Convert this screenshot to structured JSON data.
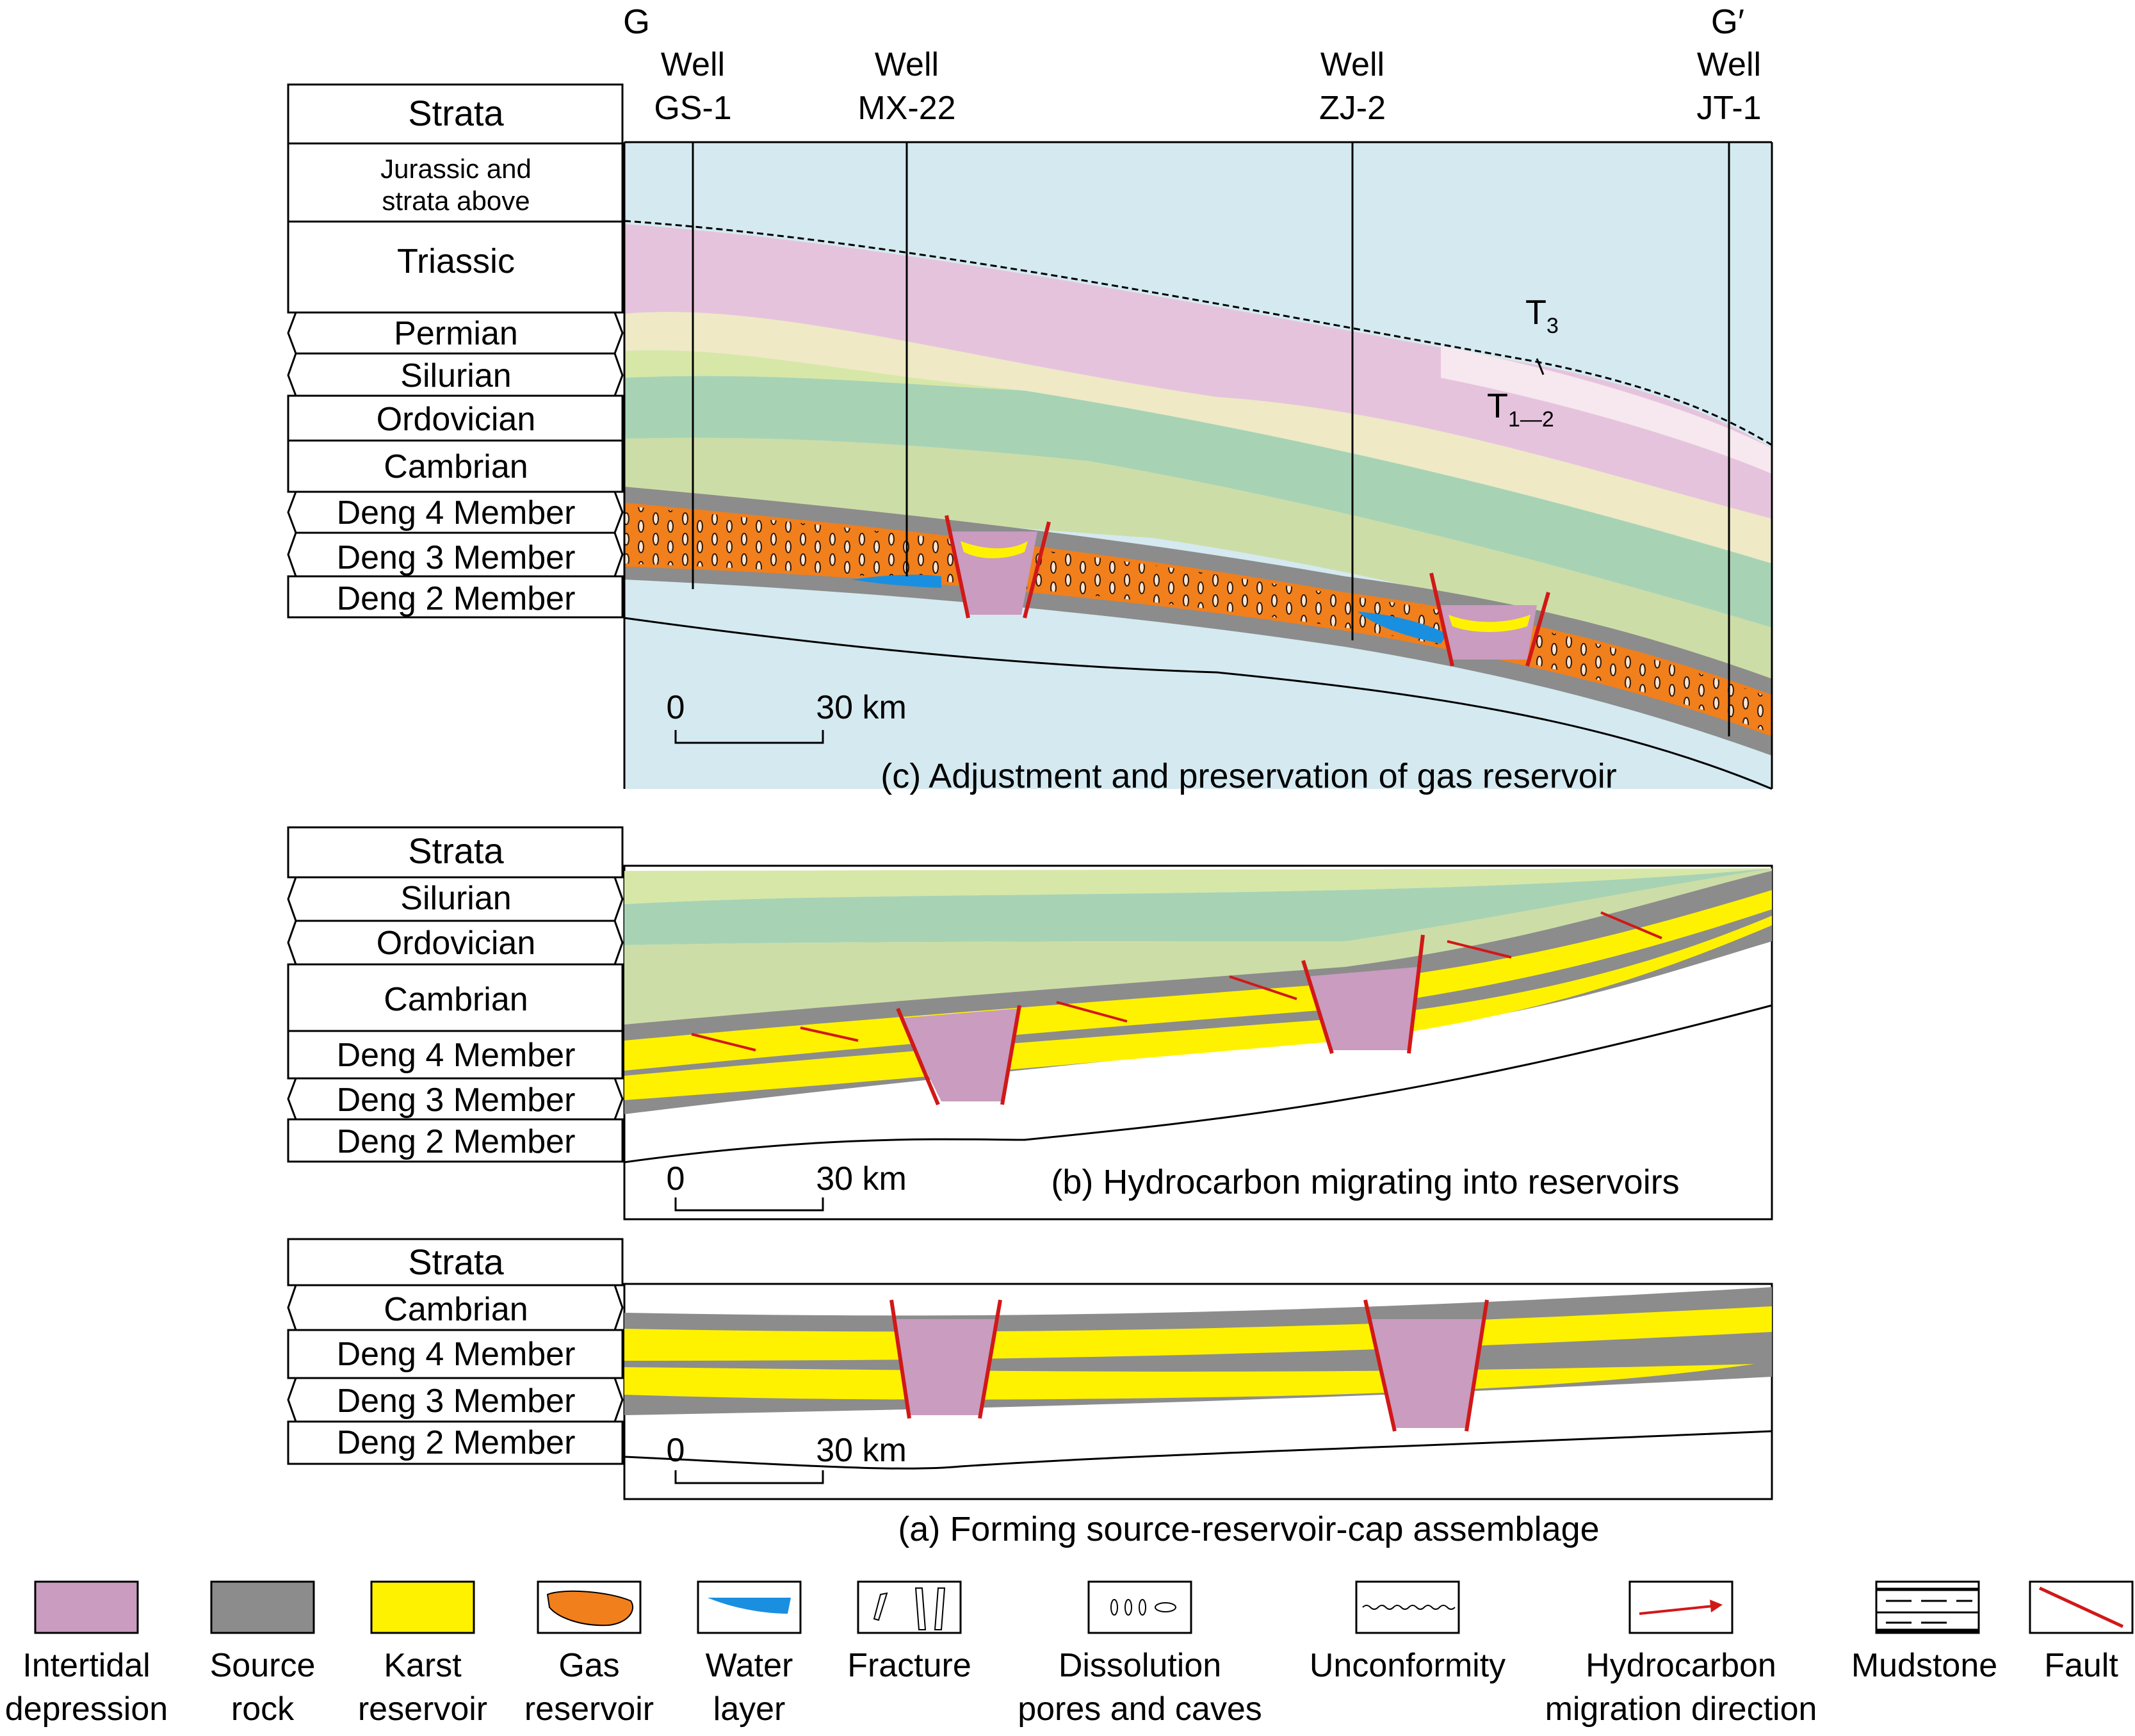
{
  "colors": {
    "jurassic": "#d4e9f0",
    "triassic": "#e6c3dd",
    "t3": "#f6e8ee",
    "permian": "#efe9c6",
    "silurian": "#d7e7a7",
    "ordovician": "#a7d3b4",
    "cambrian": "#cddda7",
    "source_rock": "#8c8c8c",
    "karst": "#fff200",
    "gas": "#f07f1c",
    "water": "#1a8fe0",
    "depression": "#c99cc0",
    "fault": "#d11818",
    "arrow": "#d11818"
  },
  "panel_c": {
    "strata_header": "Strata",
    "layers": [
      "Jurassic and",
      "strata above",
      "Triassic",
      "Permian",
      "Silurian",
      "Ordovician",
      "Cambrian",
      "Deng 4 Member",
      "Deng 3 Member",
      "Deng 2 Member"
    ],
    "section_start": "G",
    "section_end": "G′",
    "wells": [
      {
        "line1": "Well",
        "line2": "GS-1"
      },
      {
        "line1": "Well",
        "line2": "MX-22"
      },
      {
        "line1": "Well",
        "line2": "ZJ-2"
      },
      {
        "line1": "Well",
        "line2": "JT-1"
      }
    ],
    "label_t3": "T",
    "label_t3_sub": "3",
    "label_t12": "T",
    "label_t12_sub": "1—2",
    "scale_zero": "0",
    "scale_end": "30 km",
    "caption": "(c) Adjustment and preservation of gas reservoir"
  },
  "panel_b": {
    "layers": [
      "Strata",
      "Silurian",
      "Ordovician",
      "Cambrian",
      "Deng 4 Member",
      "Deng 3 Member",
      "Deng 2 Member"
    ],
    "scale_zero": "0",
    "scale_end": "30 km",
    "caption": "(b) Hydrocarbon migrating into reservoirs"
  },
  "panel_a": {
    "layers": [
      "Strata",
      "Cambrian",
      "Deng 4 Member",
      "Deng 3 Member",
      "Deng 2 Member"
    ],
    "scale_zero": "0",
    "scale_end": "30 km",
    "caption": "(a) Forming source-reservoir-cap assemblage"
  },
  "legend": [
    {
      "icon": "intertidal-depression-swatch",
      "line1": "Intertidal",
      "line2": "depression"
    },
    {
      "icon": "source-rock-swatch",
      "line1": "Source",
      "line2": "rock"
    },
    {
      "icon": "karst-reservoir-swatch",
      "line1": "Karst",
      "line2": "reservoir"
    },
    {
      "icon": "gas-reservoir-swatch",
      "line1": "Gas",
      "line2": "reservoir"
    },
    {
      "icon": "water-layer-swatch",
      "line1": "Water",
      "line2": "layer"
    },
    {
      "icon": "fracture-swatch",
      "line1": "Fracture",
      "line2": ""
    },
    {
      "icon": "dissolution-pores-swatch",
      "line1": "Dissolution",
      "line2": "pores and caves"
    },
    {
      "icon": "unconformity-swatch",
      "line1": "Unconformity",
      "line2": ""
    },
    {
      "icon": "migration-arrow-swatch",
      "line1": "Hydrocarbon",
      "line2": "migration direction"
    },
    {
      "icon": "mudstone-swatch",
      "line1": "Mudstone",
      "line2": ""
    },
    {
      "icon": "fault-swatch",
      "line1": "Fault",
      "line2": ""
    }
  ]
}
